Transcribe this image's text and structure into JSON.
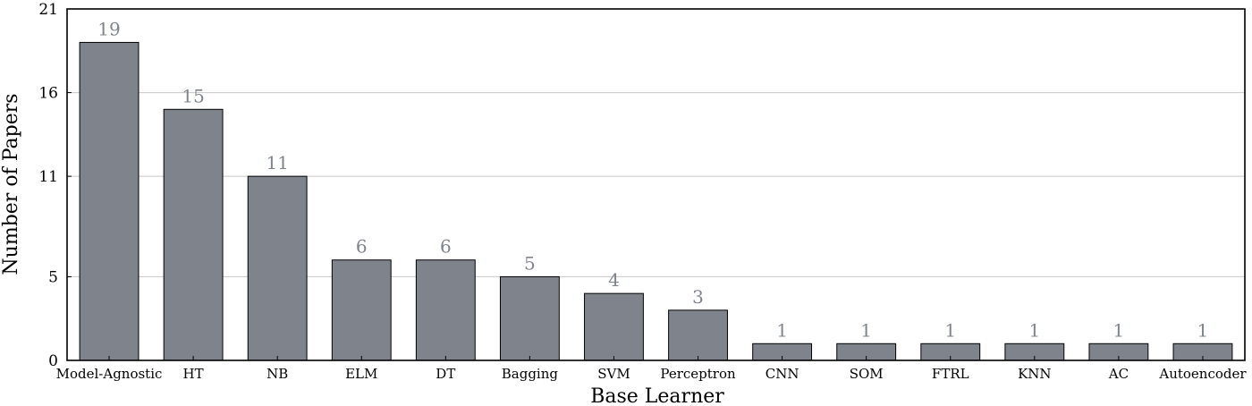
{
  "chart_data": {
    "type": "bar",
    "title": "",
    "xlabel": "Base Learner",
    "ylabel": "Number of Papers",
    "categories": [
      "Model-Agnostic",
      "HT",
      "NB",
      "ELM",
      "DT",
      "Bagging",
      "SVM",
      "Perceptron",
      "CNN",
      "SOM",
      "FTRL",
      "KNN",
      "AC",
      "Autoencoder"
    ],
    "values": [
      19,
      15,
      11,
      6,
      6,
      5,
      4,
      3,
      1,
      1,
      1,
      1,
      1,
      1
    ],
    "yticks": [
      0,
      5,
      11,
      16,
      21
    ],
    "ylim": [
      0,
      21
    ],
    "grid": true,
    "bar_color": "#7f848c",
    "label_color": "#7f848c"
  }
}
